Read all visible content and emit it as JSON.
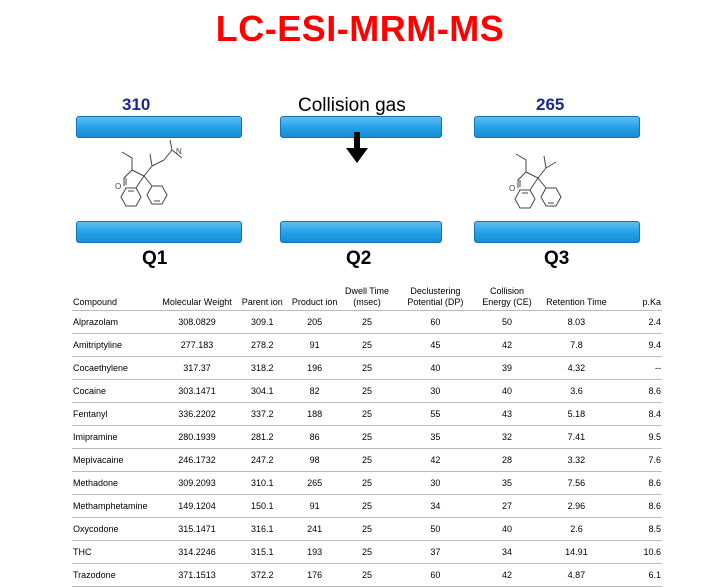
{
  "title": "LC-ESI-MRM-MS",
  "precursor_ion": "310",
  "product_ion": "265",
  "collision_gas_label": "Collision gas",
  "quadrupoles": {
    "q1": "Q1",
    "q2": "Q2",
    "q3": "Q3"
  },
  "colors": {
    "title": "#ff0000",
    "ion_labels": "#1a2a8a",
    "rod": "#23a0e8"
  },
  "table": {
    "headers": [
      "Compound",
      "Molecular Weight",
      "Parent ion",
      "Product ion",
      "Dwell Time (msec)",
      "Declustering Potential (DP)",
      "Collision Energy (CE)",
      "Retention Time",
      "p.Ka"
    ],
    "rows": [
      [
        "Alprazolam",
        "308.0829",
        "309.1",
        "205",
        "25",
        "60",
        "50",
        "8.03",
        "2.4"
      ],
      [
        "Amitriptyline",
        "277.183",
        "278.2",
        "91",
        "25",
        "45",
        "42",
        "7.8",
        "9.4"
      ],
      [
        "Cocaethylene",
        "317.37",
        "318.2",
        "196",
        "25",
        "40",
        "39",
        "4.32",
        "--"
      ],
      [
        "Cocaine",
        "303.1471",
        "304.1",
        "82",
        "25",
        "30",
        "40",
        "3.6",
        "8.6"
      ],
      [
        "Fentanyl",
        "336.2202",
        "337.2",
        "188",
        "25",
        "55",
        "43",
        "5.18",
        "8.4"
      ],
      [
        "Imipramine",
        "280.1939",
        "281.2",
        "86",
        "25",
        "35",
        "32",
        "7.41",
        "9.5"
      ],
      [
        "Mepivacaine",
        "246.1732",
        "247.2",
        "98",
        "25",
        "42",
        "28",
        "3.32",
        "7.6"
      ],
      [
        "Methadone",
        "309.2093",
        "310.1",
        "265",
        "25",
        "30",
        "35",
        "7.56",
        "8.6"
      ],
      [
        "Methamphetamine",
        "149.1204",
        "150.1",
        "91",
        "25",
        "34",
        "27",
        "2.96",
        "8.6"
      ],
      [
        "Oxycodone",
        "315.1471",
        "316.1",
        "241",
        "25",
        "50",
        "40",
        "2.6",
        "8.5"
      ],
      [
        "THC",
        "314.2246",
        "315.1",
        "193",
        "25",
        "37",
        "34",
        "14.91",
        "10.6"
      ],
      [
        "Trazodone",
        "371.1513",
        "372.2",
        "176",
        "25",
        "60",
        "42",
        "4.87",
        "6.1"
      ]
    ]
  }
}
